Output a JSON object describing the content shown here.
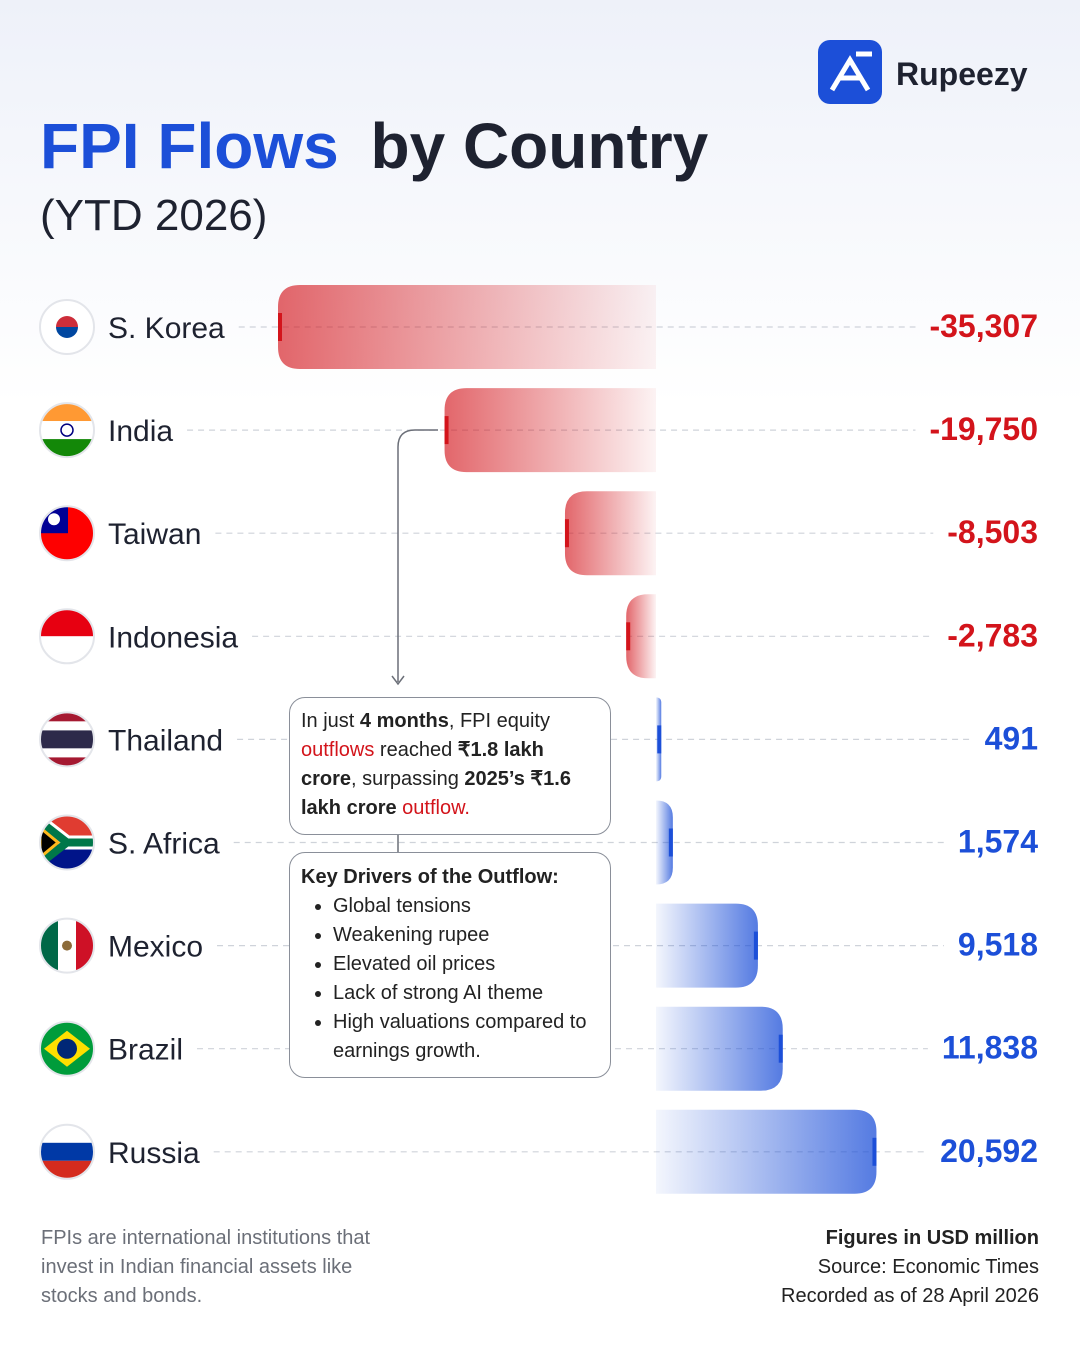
{
  "brand": "Rupeezy",
  "chart_data": {
    "type": "bar",
    "orientation": "horizontal",
    "title": [
      "FPI Flows",
      "by Country"
    ],
    "subtitle": "(YTD 2026)",
    "categories": [
      "S. Korea",
      "India",
      "Taiwan",
      "Indonesia",
      "Thailand",
      "S. Africa",
      "Mexico",
      "Brazil",
      "Russia"
    ],
    "values": [
      -35307,
      -19750,
      -8503,
      -2783,
      491,
      1574,
      9518,
      11838,
      20592
    ],
    "value_labels": [
      "-35,307",
      "-19,750",
      "-8,503",
      "-2,783",
      "491",
      "1,574",
      "9,518",
      "11,838",
      "20,592"
    ],
    "colors": {
      "negative": "#d3141b",
      "positive": "#1c4fd8"
    },
    "annotation": [
      "In just ",
      "4 months",
      ", FPI equity ",
      "outflows",
      " reached ",
      "₹1.8 lakh crore",
      ", surpassing ",
      "2025’s ₹1.6 lakh crore",
      " outflow."
    ],
    "drivers": {
      "title": "Key Drivers of the Outflow:",
      "items": [
        "Global tensions",
        "Weakening rupee",
        "Elevated oil prices",
        "Lack of strong AI theme",
        "High valuations compared to earnings growth."
      ]
    },
    "note": [
      "FPIs are international institutions that",
      "invest in Indian financial assets like",
      "stocks and bonds."
    ],
    "units": "Figures in USD million",
    "source": "Source: Economic Times",
    "recorded": "Recorded as of 28 April 2026"
  }
}
